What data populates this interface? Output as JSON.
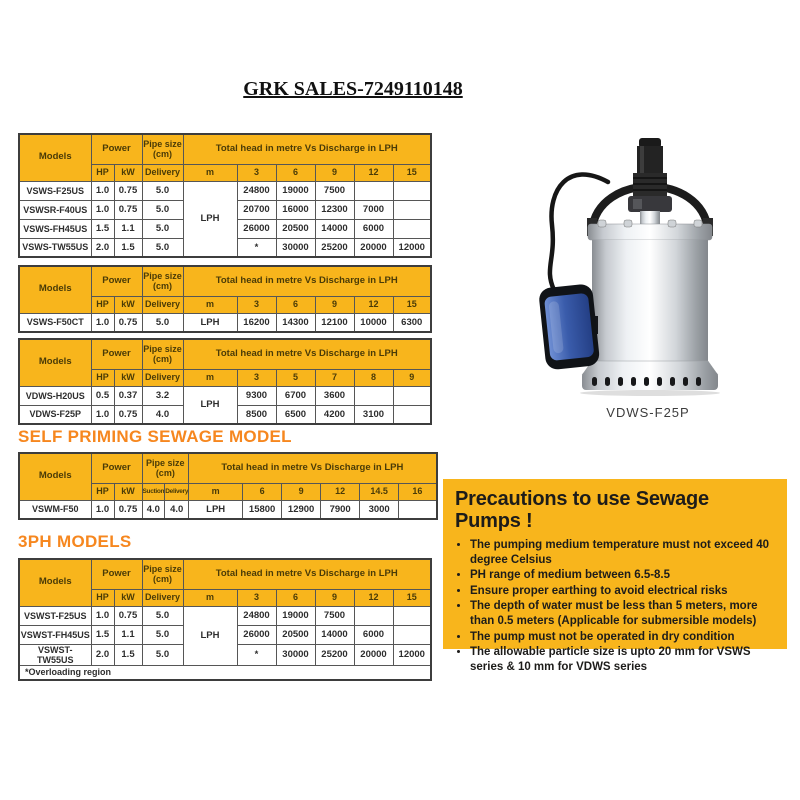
{
  "page_title": "GRK SALES-7249110148",
  "colors": {
    "accent_yellow": "#F8B51C",
    "heading_orange": "#F6871F",
    "header_text_brown": "#4a3b07",
    "float_blue": "#3a5cab"
  },
  "sections": {
    "self_priming_heading": "SELF PRIMING SEWAGE MODEL",
    "three_phase_heading": "3PH MODELS"
  },
  "table_labels": {
    "models": "Models",
    "power": "Power",
    "hp": "HP",
    "kw": "kW",
    "pipe_size": "Pipe size (cm)",
    "head_title": "Total head in metre Vs Discharge in LPH",
    "m": "m",
    "unit": "LPH"
  },
  "spec_tables": [
    {
      "name": "vsws-models",
      "pipe_cols": [
        "Delivery"
      ],
      "head_cols": [
        "3",
        "6",
        "9",
        "12",
        "15"
      ],
      "rows": [
        {
          "model": "VSWS-F25US",
          "hp": "1.0",
          "kw": "0.75",
          "pipe": [
            "5.0"
          ],
          "values": [
            "24800",
            "19000",
            "7500",
            "",
            ""
          ]
        },
        {
          "model": "VSWSR-F40US",
          "hp": "1.0",
          "kw": "0.75",
          "pipe": [
            "5.0"
          ],
          "values": [
            "20700",
            "16000",
            "12300",
            "7000",
            ""
          ]
        },
        {
          "model": "VSWS-FH45US",
          "hp": "1.5",
          "kw": "1.1",
          "pipe": [
            "5.0"
          ],
          "values": [
            "26000",
            "20500",
            "14000",
            "6000",
            ""
          ]
        },
        {
          "model": "VSWS-TW55US",
          "hp": "2.0",
          "kw": "1.5",
          "pipe": [
            "5.0"
          ],
          "values": [
            "*",
            "30000",
            "25200",
            "20000",
            "12000"
          ]
        }
      ],
      "footnote": ""
    },
    {
      "name": "vsws-f50ct",
      "pipe_cols": [
        "Delivery"
      ],
      "head_cols": [
        "3",
        "6",
        "9",
        "12",
        "15"
      ],
      "rows": [
        {
          "model": "VSWS-F50CT",
          "hp": "1.0",
          "kw": "0.75",
          "pipe": [
            "5.0"
          ],
          "values": [
            "16200",
            "14300",
            "12100",
            "10000",
            "6300"
          ]
        }
      ],
      "footnote": ""
    },
    {
      "name": "vdws-models",
      "pipe_cols": [
        "Delivery"
      ],
      "head_cols": [
        "3",
        "5",
        "7",
        "8",
        "9"
      ],
      "rows": [
        {
          "model": "VDWS-H20US",
          "hp": "0.5",
          "kw": "0.37",
          "pipe": [
            "3.2"
          ],
          "values": [
            "9300",
            "6700",
            "3600",
            "",
            ""
          ]
        },
        {
          "model": "VDWS-F25P",
          "hp": "1.0",
          "kw": "0.75",
          "pipe": [
            "4.0"
          ],
          "values": [
            "8500",
            "6500",
            "4200",
            "3100",
            ""
          ]
        }
      ],
      "footnote": ""
    },
    {
      "name": "self-priming",
      "pipe_cols": [
        "Suction",
        "Delivery"
      ],
      "head_cols": [
        "6",
        "9",
        "12",
        "14.5",
        "16"
      ],
      "rows": [
        {
          "model": "VSWM-F50",
          "hp": "1.0",
          "kw": "0.75",
          "pipe": [
            "4.0",
            "4.0"
          ],
          "values": [
            "15800",
            "12900",
            "7900",
            "3000",
            ""
          ]
        }
      ],
      "footnote": ""
    },
    {
      "name": "three-phase",
      "pipe_cols": [
        "Delivery"
      ],
      "head_cols": [
        "3",
        "6",
        "9",
        "12",
        "15"
      ],
      "rows": [
        {
          "model": "VSWST-F25US",
          "hp": "1.0",
          "kw": "0.75",
          "pipe": [
            "5.0"
          ],
          "values": [
            "24800",
            "19000",
            "7500",
            "",
            ""
          ]
        },
        {
          "model": "VSWST-FH45US",
          "hp": "1.5",
          "kw": "1.1",
          "pipe": [
            "5.0"
          ],
          "values": [
            "26000",
            "20500",
            "14000",
            "6000",
            ""
          ]
        },
        {
          "model": "VSWST-TW55US",
          "hp": "2.0",
          "kw": "1.5",
          "pipe": [
            "5.0"
          ],
          "values": [
            "*",
            "30000",
            "25200",
            "20000",
            "12000"
          ]
        }
      ],
      "footnote": "*Overloading region"
    }
  ],
  "pump_figure": {
    "caption": "VDWS-F25P"
  },
  "precautions": {
    "title": "Precautions to use Sewage Pumps !",
    "bullets": [
      "The pumping medium temperature must not exceed 40 degree Celsius",
      "PH range of medium between 6.5-8.5",
      "Ensure proper earthing to avoid electrical risks",
      "The depth of water must be less than 5 meters, more than 0.5 meters (Applicable for submersible models)",
      "The pump must not be operated in dry condition",
      "The allowable particle size is upto 20 mm for VSWS series & 10 mm for VDWS series"
    ]
  }
}
